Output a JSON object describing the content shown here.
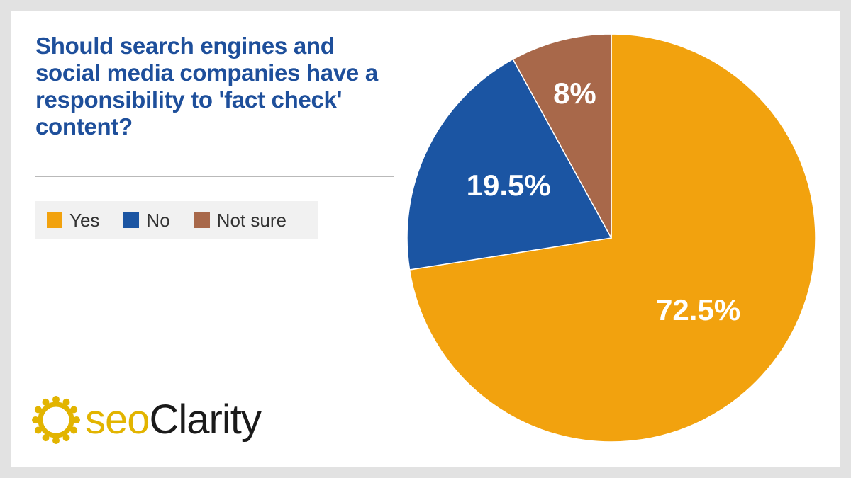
{
  "chart_data": {
    "type": "pie",
    "title": "Should search engines and social media companies have a responsibility to 'fact check' content?",
    "slices": [
      {
        "name": "Yes",
        "value": 72.5,
        "label": "72.5%",
        "color": "#f2a20e"
      },
      {
        "name": "No",
        "value": 19.5,
        "label": "19.5%",
        "color": "#1b55a3"
      },
      {
        "name": "Not sure",
        "value": 8,
        "label": "8%",
        "color": "#a8684a"
      }
    ],
    "legend_position": "left"
  },
  "brand": {
    "logo_seo": "seo",
    "logo_clarity": "Clarity",
    "colors": {
      "title": "#1e4f9b",
      "logo_yellow": "#e2b400"
    }
  }
}
